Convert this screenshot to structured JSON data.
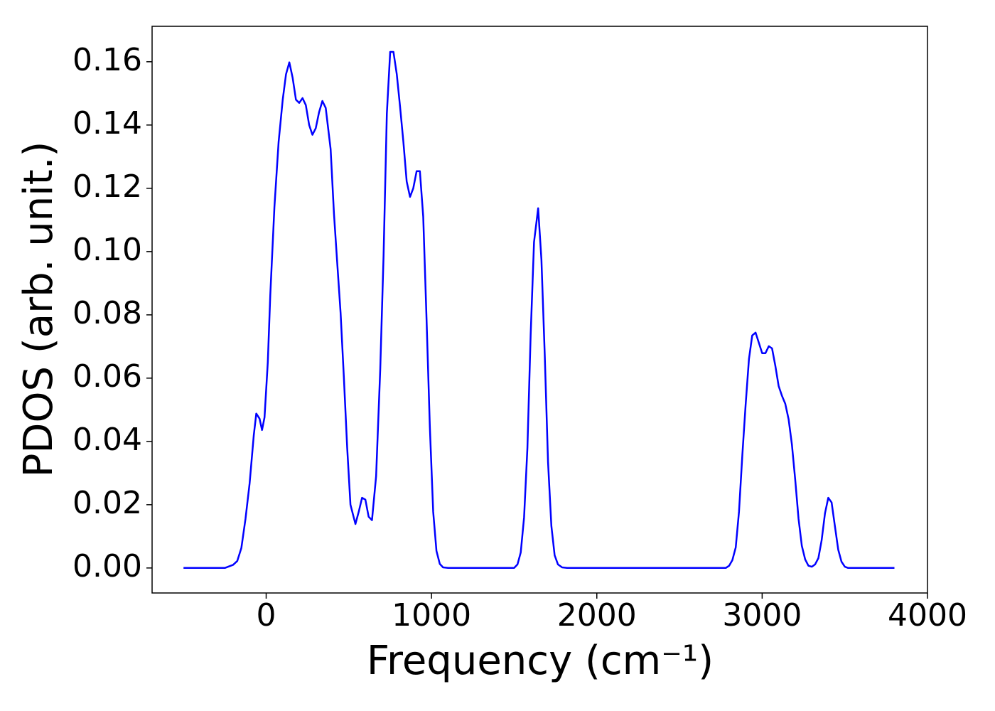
{
  "chart_data": {
    "type": "line",
    "x_label": "Frequency (cm⁻¹)",
    "y_label": "PDOS (arb. unit.)",
    "x": [
      -500,
      -250,
      -200,
      -175,
      -150,
      -125,
      -100,
      -75,
      -60,
      -40,
      -25,
      -10,
      10,
      25,
      50,
      75,
      100,
      120,
      140,
      160,
      180,
      200,
      220,
      240,
      260,
      280,
      300,
      320,
      340,
      360,
      390,
      410,
      430,
      450,
      470,
      490,
      510,
      540,
      560,
      580,
      600,
      620,
      640,
      665,
      690,
      710,
      730,
      750,
      770,
      790,
      810,
      830,
      850,
      870,
      890,
      910,
      930,
      950,
      970,
      990,
      1010,
      1030,
      1050,
      1070,
      1100,
      1500,
      1520,
      1540,
      1560,
      1580,
      1600,
      1620,
      1645,
      1665,
      1685,
      1705,
      1725,
      1745,
      1765,
      1790,
      1820,
      2780,
      2800,
      2820,
      2840,
      2860,
      2880,
      2900,
      2920,
      2940,
      2960,
      2980,
      3000,
      3020,
      3040,
      3060,
      3080,
      3100,
      3120,
      3140,
      3160,
      3180,
      3200,
      3220,
      3240,
      3260,
      3280,
      3300,
      3320,
      3340,
      3360,
      3380,
      3400,
      3420,
      3440,
      3460,
      3480,
      3500,
      3520,
      3800
    ],
    "series": [
      {
        "name": "PDOS",
        "color": "#0000ff",
        "values": [
          0,
          0,
          0.001,
          0.0022,
          0.0063,
          0.0155,
          0.0267,
          0.042,
          0.0488,
          0.0472,
          0.0436,
          0.0476,
          0.065,
          0.0863,
          0.114,
          0.1346,
          0.148,
          0.156,
          0.1598,
          0.155,
          0.148,
          0.147,
          0.1485,
          0.1463,
          0.14,
          0.1369,
          0.139,
          0.144,
          0.1476,
          0.1454,
          0.1324,
          0.112,
          0.0964,
          0.0807,
          0.0604,
          0.038,
          0.02,
          0.0139,
          0.0178,
          0.0222,
          0.0216,
          0.0162,
          0.0151,
          0.029,
          0.0627,
          0.0987,
          0.1436,
          0.1631,
          0.1631,
          0.156,
          0.1458,
          0.1346,
          0.1222,
          0.1173,
          0.12,
          0.1254,
          0.1254,
          0.111,
          0.0784,
          0.0447,
          0.0178,
          0.0054,
          0.0013,
          0.0002,
          0,
          0,
          0.0011,
          0.0049,
          0.016,
          0.038,
          0.074,
          0.103,
          0.1137,
          0.0975,
          0.0672,
          0.0335,
          0.0133,
          0.004,
          0.0011,
          0.0002,
          0,
          0,
          0.0007,
          0.0025,
          0.0065,
          0.0178,
          0.0357,
          0.0515,
          0.066,
          0.0735,
          0.0744,
          0.0712,
          0.0679,
          0.0679,
          0.0701,
          0.0694,
          0.0638,
          0.0575,
          0.0544,
          0.0519,
          0.047,
          0.0391,
          0.0279,
          0.0155,
          0.007,
          0.0027,
          0.0007,
          0.0004,
          0.0011,
          0.0031,
          0.0088,
          0.0173,
          0.0222,
          0.0207,
          0.0133,
          0.0058,
          0.002,
          0.0004,
          0,
          0
        ]
      }
    ],
    "xlim": [
      -690,
      4000
    ],
    "xticks": [
      0,
      1000,
      2000,
      3000,
      4000
    ],
    "ylim": [
      -0.0079,
      0.1712
    ],
    "yticks": [
      {
        "value": 0,
        "label": "0.00"
      },
      {
        "value": 0.02,
        "label": "0.02"
      },
      {
        "value": 0.04,
        "label": "0.04"
      },
      {
        "value": 0.06,
        "label": "0.06"
      },
      {
        "value": 0.08,
        "label": "0.08"
      },
      {
        "value": 0.1,
        "label": "0.10"
      },
      {
        "value": 0.12,
        "label": "0.12"
      },
      {
        "value": 0.14,
        "label": "0.14"
      },
      {
        "value": 0.16,
        "label": "0.16"
      }
    ]
  }
}
